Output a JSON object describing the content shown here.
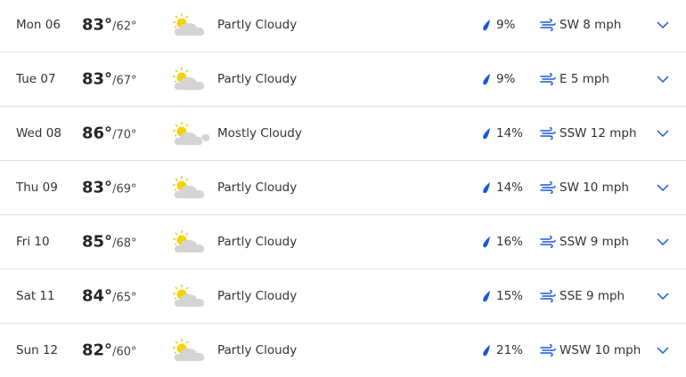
{
  "accent_color": "#1a56db",
  "days": [
    {
      "day": "Mon 06",
      "high": "83°",
      "low": "62°",
      "condition": "Partly Cloudy",
      "icon": "partly-cloudy-icon",
      "precip": "9%",
      "wind": "SW 8 mph"
    },
    {
      "day": "Tue 07",
      "high": "83°",
      "low": "67°",
      "condition": "Partly Cloudy",
      "icon": "partly-cloudy-icon",
      "precip": "9%",
      "wind": "E 5 mph"
    },
    {
      "day": "Wed 08",
      "high": "86°",
      "low": "70°",
      "condition": "Mostly Cloudy",
      "icon": "mostly-cloudy-icon",
      "precip": "14%",
      "wind": "SSW 12 mph"
    },
    {
      "day": "Thu 09",
      "high": "83°",
      "low": "69°",
      "condition": "Partly Cloudy",
      "icon": "partly-cloudy-icon",
      "precip": "14%",
      "wind": "SW 10 mph"
    },
    {
      "day": "Fri 10",
      "high": "85°",
      "low": "68°",
      "condition": "Partly Cloudy",
      "icon": "partly-cloudy-icon",
      "precip": "16%",
      "wind": "SSW 9 mph"
    },
    {
      "day": "Sat 11",
      "high": "84°",
      "low": "65°",
      "condition": "Partly Cloudy",
      "icon": "partly-cloudy-icon",
      "precip": "15%",
      "wind": "SSE 9 mph"
    },
    {
      "day": "Sun 12",
      "high": "82°",
      "low": "60°",
      "condition": "Partly Cloudy",
      "icon": "partly-cloudy-icon",
      "precip": "21%",
      "wind": "WSW 10 mph"
    }
  ]
}
